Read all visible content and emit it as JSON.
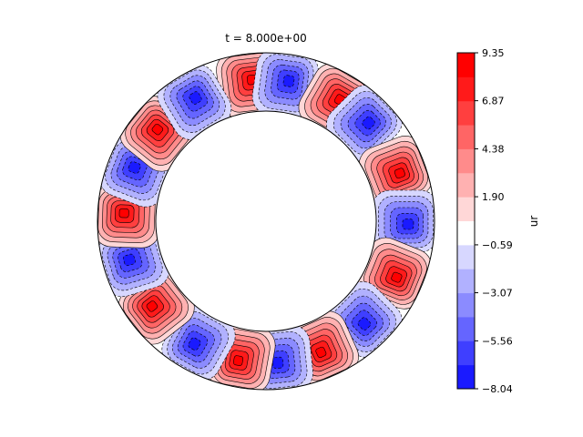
{
  "chart_data": {
    "type": "heatmap",
    "title": "t = 8.000e+00",
    "colorbar": {
      "label": "ur",
      "ticks": [
        "9.35",
        "6.87",
        "4.38",
        "1.90",
        "−0.59",
        "−3.07",
        "−5.56",
        "−8.04"
      ],
      "tick_values": [
        9.35,
        6.87,
        4.38,
        1.9,
        -0.59,
        -3.07,
        -5.56,
        -8.04
      ],
      "range": [
        -8.04,
        9.35
      ],
      "levels": 14,
      "colors": [
        "#1a1aff",
        "#3f3fff",
        "#6565ff",
        "#8b8bff",
        "#b1b1ff",
        "#d7d7ff",
        "#ffffff",
        "#ffd7d7",
        "#ffb1b1",
        "#ff8b8b",
        "#ff6565",
        "#ff3f3f",
        "#ff1a1a",
        "#ff0000"
      ]
    },
    "domain": {
      "shape": "annulus",
      "inner_radius": 0.65,
      "outer_radius": 1.0
    },
    "cells": [
      {
        "angle_deg": 97,
        "sign": "positive",
        "peak": 9.35
      },
      {
        "angle_deg": 82,
        "sign": "negative",
        "peak": -8.04
      },
      {
        "angle_deg": 60,
        "sign": "positive",
        "peak": 9.35
      },
      {
        "angle_deg": 45,
        "sign": "negative",
        "peak": -8.04
      },
      {
        "angle_deg": 21,
        "sign": "positive",
        "peak": 9.35
      },
      {
        "angle_deg": 0,
        "sign": "negative",
        "peak": -8.04
      },
      {
        "angle_deg": -22,
        "sign": "positive",
        "peak": 9.35
      },
      {
        "angle_deg": -45,
        "sign": "negative",
        "peak": -8.04
      },
      {
        "angle_deg": -66,
        "sign": "positive",
        "peak": 9.35
      },
      {
        "angle_deg": -84,
        "sign": "negative",
        "peak": -8.04
      },
      {
        "angle_deg": -100,
        "sign": "positive",
        "peak": 9.35
      },
      {
        "angle_deg": -119,
        "sign": "negative",
        "peak": -8.04
      },
      {
        "angle_deg": -142,
        "sign": "positive",
        "peak": 9.35
      },
      {
        "angle_deg": -163,
        "sign": "negative",
        "peak": -8.04
      },
      {
        "angle_deg": 178,
        "sign": "positive",
        "peak": 9.35
      },
      {
        "angle_deg": 159,
        "sign": "negative",
        "peak": -8.04
      },
      {
        "angle_deg": 141,
        "sign": "positive",
        "peak": 9.35
      },
      {
        "angle_deg": 121,
        "sign": "negative",
        "peak": -8.04
      }
    ]
  }
}
